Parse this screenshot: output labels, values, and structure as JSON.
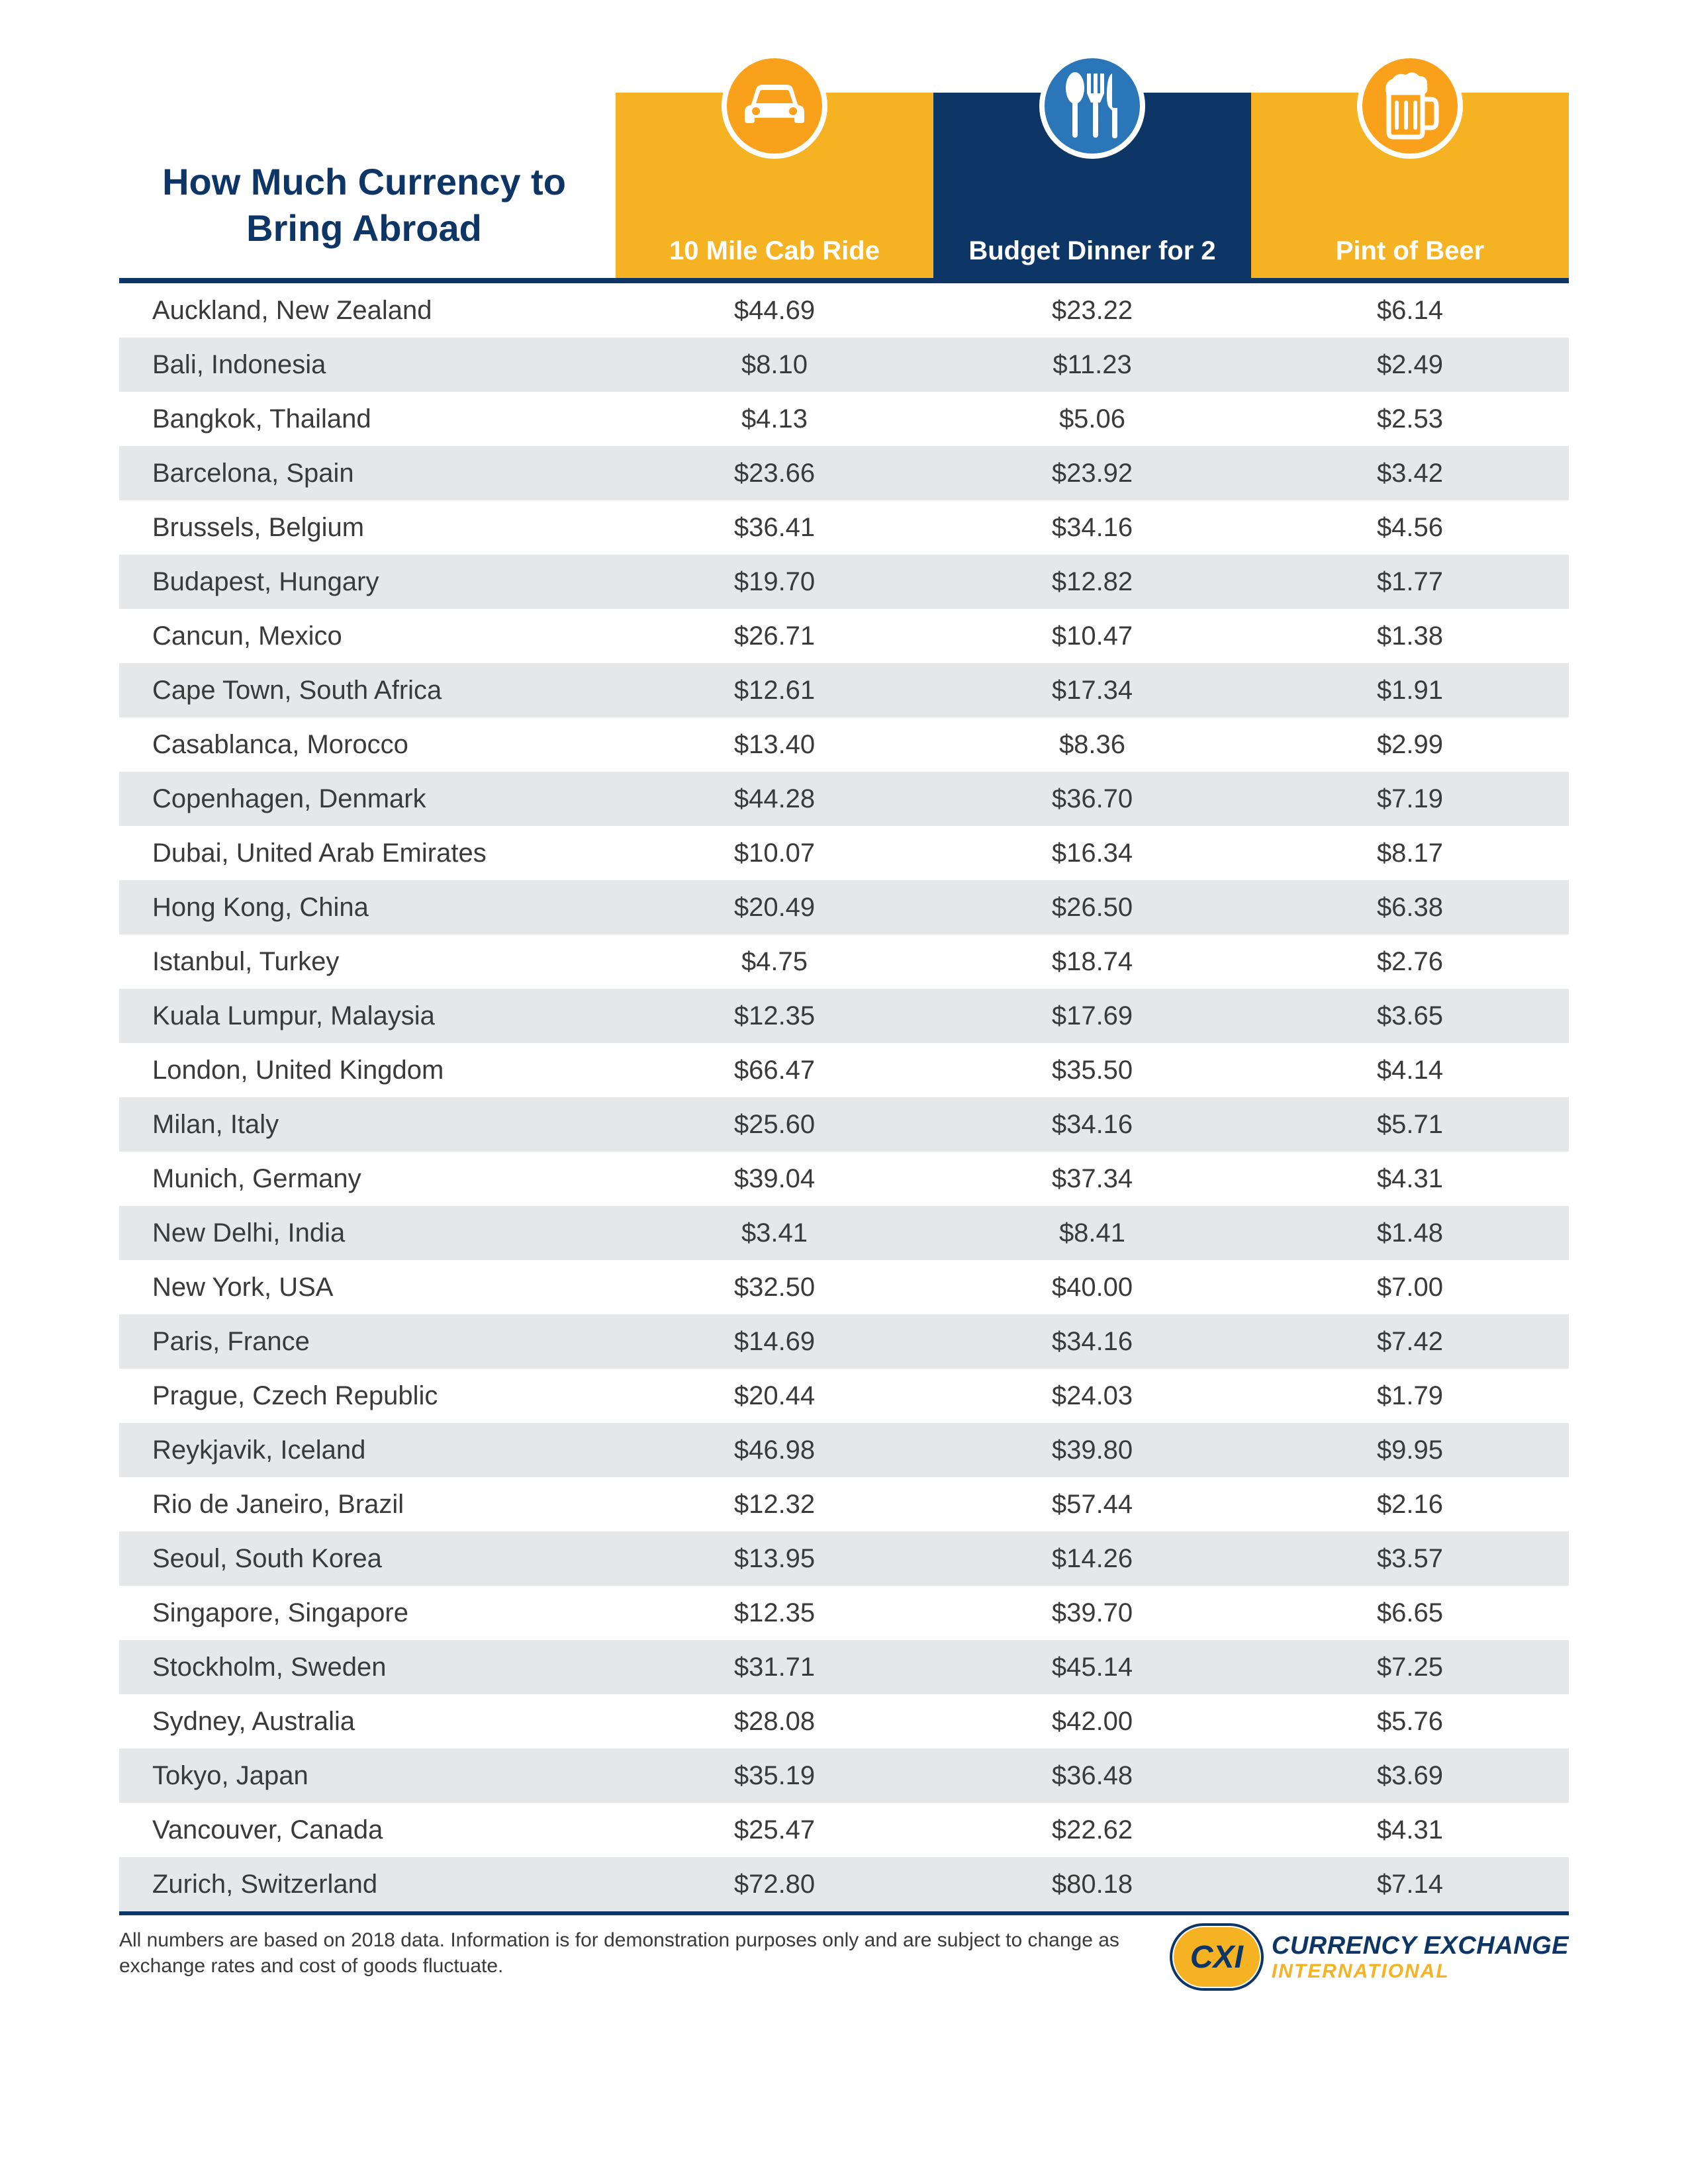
{
  "title": "How Much Currency to Bring Abroad",
  "columns": [
    {
      "label": "10 Mile Cab Ride",
      "bg": "yellow",
      "icon_bg": "orange",
      "icon": "car"
    },
    {
      "label": "Budget Dinner for 2",
      "bg": "blue",
      "icon_bg": "bluebg",
      "icon": "cutlery"
    },
    {
      "label": "Pint of Beer",
      "bg": "yellow",
      "icon_bg": "orange",
      "icon": "beer"
    }
  ],
  "rows": [
    {
      "city": "Auckland, New Zealand",
      "v1": "$44.69",
      "v2": "$23.22",
      "v3": "$6.14"
    },
    {
      "city": "Bali, Indonesia",
      "v1": "$8.10",
      "v2": "$11.23",
      "v3": "$2.49"
    },
    {
      "city": "Bangkok, Thailand",
      "v1": "$4.13",
      "v2": "$5.06",
      "v3": "$2.53"
    },
    {
      "city": "Barcelona, Spain",
      "v1": "$23.66",
      "v2": "$23.92",
      "v3": "$3.42"
    },
    {
      "city": "Brussels, Belgium",
      "v1": "$36.41",
      "v2": "$34.16",
      "v3": "$4.56"
    },
    {
      "city": "Budapest, Hungary",
      "v1": "$19.70",
      "v2": "$12.82",
      "v3": "$1.77"
    },
    {
      "city": "Cancun, Mexico",
      "v1": "$26.71",
      "v2": "$10.47",
      "v3": "$1.38"
    },
    {
      "city": "Cape Town, South Africa",
      "v1": "$12.61",
      "v2": "$17.34",
      "v3": "$1.91"
    },
    {
      "city": "Casablanca, Morocco",
      "v1": "$13.40",
      "v2": "$8.36",
      "v3": "$2.99"
    },
    {
      "city": "Copenhagen, Denmark",
      "v1": "$44.28",
      "v2": "$36.70",
      "v3": "$7.19"
    },
    {
      "city": "Dubai, United Arab Emirates",
      "v1": "$10.07",
      "v2": "$16.34",
      "v3": "$8.17"
    },
    {
      "city": "Hong Kong, China",
      "v1": "$20.49",
      "v2": "$26.50",
      "v3": "$6.38"
    },
    {
      "city": "Istanbul, Turkey",
      "v1": "$4.75",
      "v2": "$18.74",
      "v3": "$2.76"
    },
    {
      "city": "Kuala Lumpur, Malaysia",
      "v1": "$12.35",
      "v2": "$17.69",
      "v3": "$3.65"
    },
    {
      "city": "London, United Kingdom",
      "v1": "$66.47",
      "v2": "$35.50",
      "v3": "$4.14"
    },
    {
      "city": "Milan, Italy",
      "v1": "$25.60",
      "v2": "$34.16",
      "v3": "$5.71"
    },
    {
      "city": "Munich, Germany",
      "v1": "$39.04",
      "v2": "$37.34",
      "v3": "$4.31"
    },
    {
      "city": "New Delhi, India",
      "v1": "$3.41",
      "v2": "$8.41",
      "v3": "$1.48"
    },
    {
      "city": "New York, USA",
      "v1": "$32.50",
      "v2": "$40.00",
      "v3": "$7.00"
    },
    {
      "city": "Paris, France",
      "v1": "$14.69",
      "v2": "$34.16",
      "v3": "$7.42"
    },
    {
      "city": "Prague, Czech Republic",
      "v1": "$20.44",
      "v2": "$24.03",
      "v3": "$1.79"
    },
    {
      "city": "Reykjavik, Iceland",
      "v1": "$46.98",
      "v2": "$39.80",
      "v3": "$9.95"
    },
    {
      "city": "Rio de Janeiro, Brazil",
      "v1": "$12.32",
      "v2": "$57.44",
      "v3": "$2.16"
    },
    {
      "city": "Seoul, South Korea",
      "v1": "$13.95",
      "v2": "$14.26",
      "v3": "$3.57"
    },
    {
      "city": "Singapore, Singapore",
      "v1": "$12.35",
      "v2": "$39.70",
      "v3": "$6.65"
    },
    {
      "city": "Stockholm, Sweden",
      "v1": "$31.71",
      "v2": "$45.14",
      "v3": "$7.25"
    },
    {
      "city": "Sydney, Australia",
      "v1": "$28.08",
      "v2": "$42.00",
      "v3": "$5.76"
    },
    {
      "city": "Tokyo, Japan",
      "v1": "$35.19",
      "v2": "$36.48",
      "v3": "$3.69"
    },
    {
      "city": "Vancouver, Canada",
      "v1": "$25.47",
      "v2": "$22.62",
      "v3": "$4.31"
    },
    {
      "city": "Zurich, Switzerland",
      "v1": "$72.80",
      "v2": "$80.18",
      "v3": "$7.14"
    }
  ],
  "disclaimer": "All numbers are based on 2018 data. Information is for demonstration purposes only and are subject to change as exchange rates and cost of goods fluctuate.",
  "logo": {
    "badge": "CXI",
    "line1": "CURRENCY EXCHANGE",
    "line2": "INTERNATIONAL"
  },
  "colors": {
    "primary_blue": "#0d3666",
    "accent_yellow": "#f5b324",
    "accent_orange": "#f9a11b",
    "icon_blue": "#2b76b8",
    "row_alt": "#e6e7e8",
    "text": "#3a3a3a"
  },
  "typography": {
    "title_pt": 56,
    "header_pt": 40,
    "body_pt": 40,
    "footer_pt": 30
  }
}
